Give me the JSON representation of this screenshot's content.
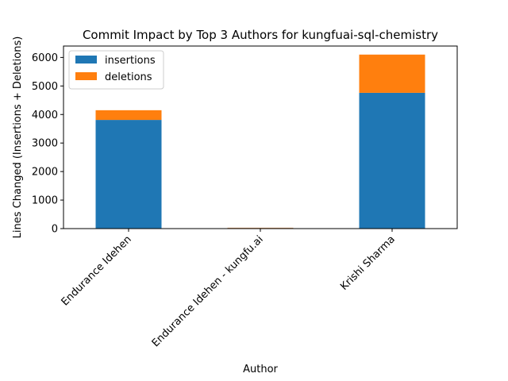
{
  "chart_data": {
    "type": "bar",
    "stacked": true,
    "title": "Commit Impact by Top 3 Authors for kungfuai-sql-chemistry",
    "xlabel": "Author",
    "ylabel": "Lines Changed (Insertions + Deletions)",
    "categories": [
      "Endurance Idehen",
      "Endurance Idehen - kungfu.ai",
      "Krishi Sharma"
    ],
    "series": [
      {
        "name": "insertions",
        "color": "#1f77b4",
        "values": [
          3810,
          20,
          4760
        ]
      },
      {
        "name": "deletions",
        "color": "#ff7f0e",
        "values": [
          340,
          10,
          1340
        ]
      }
    ],
    "ylim": [
      0,
      6400
    ],
    "yticks": [
      0,
      1000,
      2000,
      3000,
      4000,
      5000,
      6000
    ],
    "grid": false,
    "legend_position": "top-left"
  }
}
